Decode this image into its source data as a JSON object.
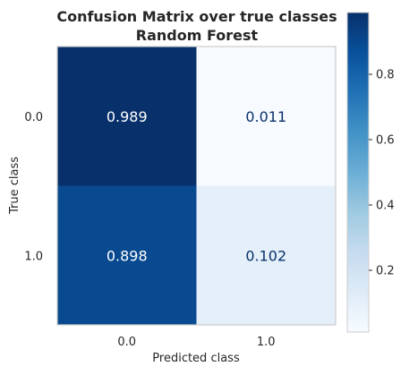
{
  "chart_data": {
    "type": "heatmap",
    "title": "Confusion Matrix over true classes",
    "subtitle": "Random Forest",
    "xlabel": "Predicted class",
    "ylabel": "True class",
    "x_categories": [
      "0.0",
      "1.0"
    ],
    "y_categories": [
      "0.0",
      "1.0"
    ],
    "values": [
      [
        0.989,
        0.011
      ],
      [
        0.898,
        0.102
      ]
    ],
    "value_labels": [
      [
        "0.989",
        "0.011"
      ],
      [
        "0.898",
        "0.102"
      ]
    ],
    "colormap": "Blues",
    "colorbar": {
      "range": [
        0.011,
        0.989
      ],
      "ticks": [
        0.2,
        0.4,
        0.6,
        0.8
      ],
      "tick_labels": [
        "0.2",
        "0.4",
        "0.6",
        "0.8"
      ]
    },
    "grid": false,
    "legend": "colorbar-right",
    "colors": {
      "cmap_low": "#f7fbff",
      "cmap_high": "#08306b",
      "text_dark_bg": "#ffffff",
      "text_light_bg": "#08306b",
      "frame": "#cccccc"
    }
  }
}
